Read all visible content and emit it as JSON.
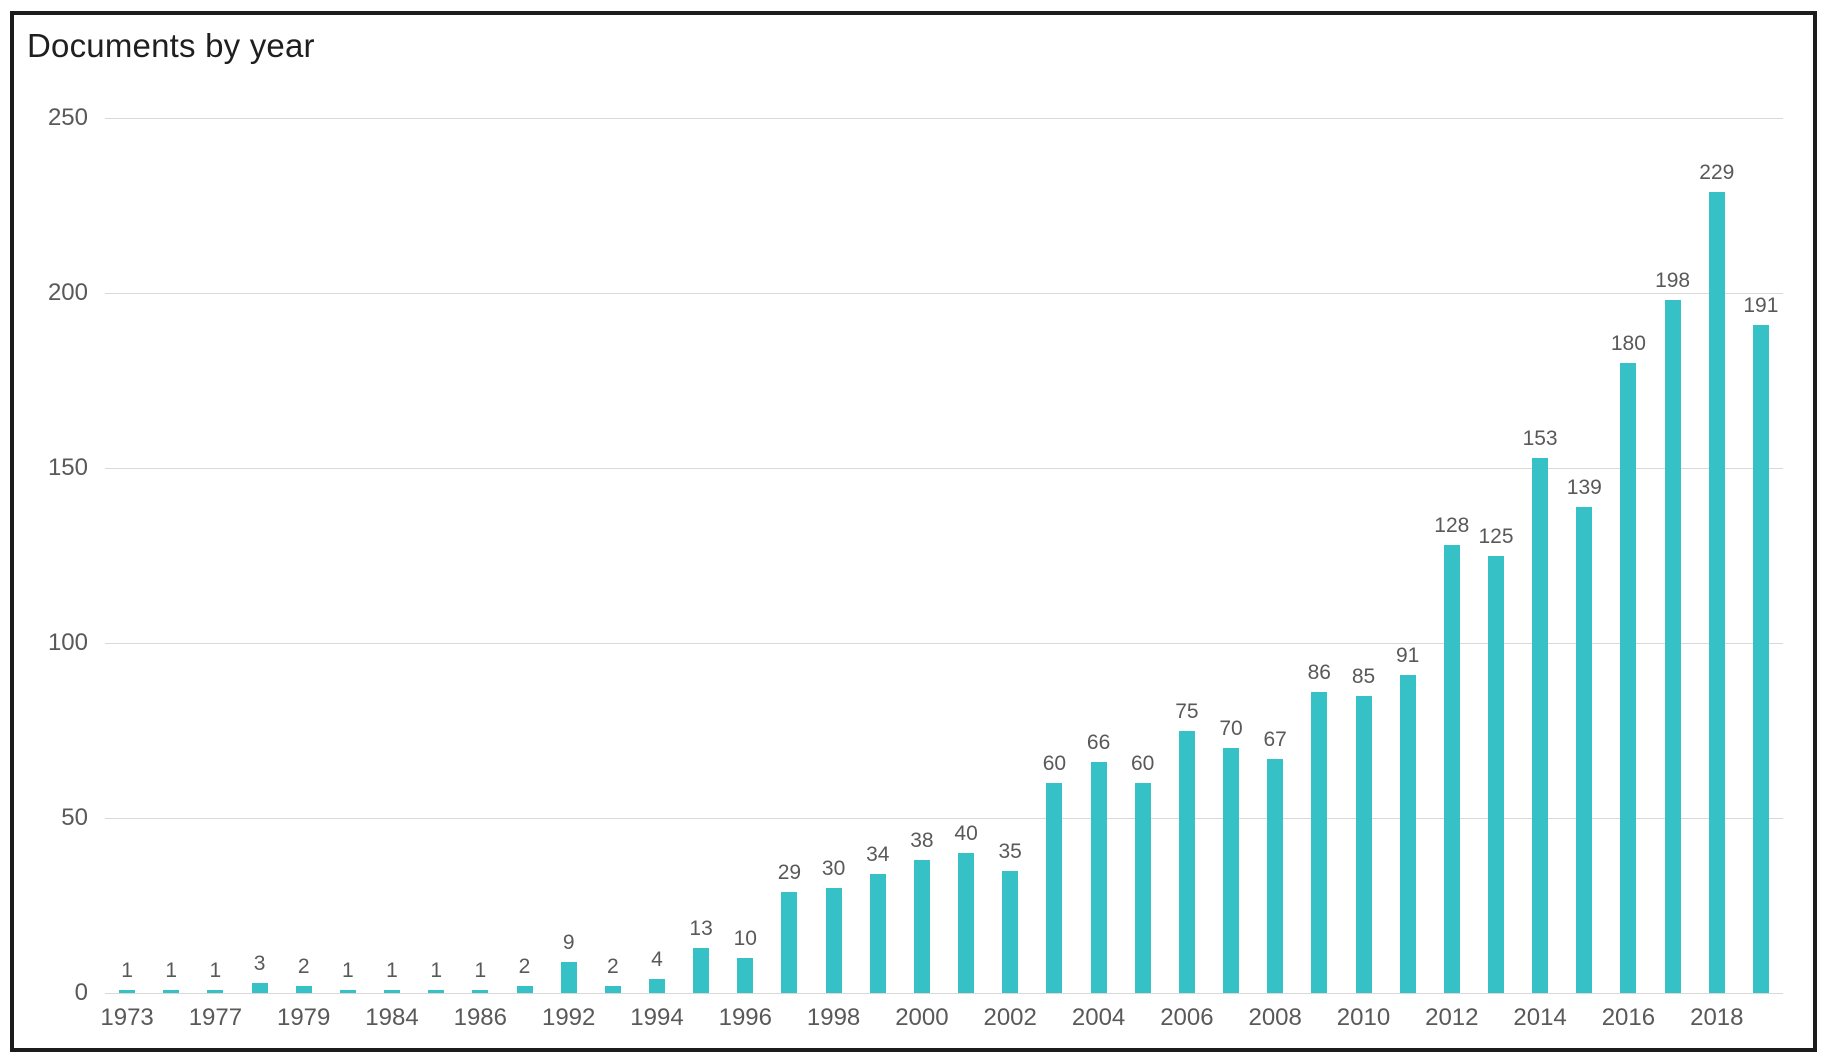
{
  "chart_data": {
    "type": "bar",
    "title": "Documents by year",
    "xlabel": "",
    "ylabel": "",
    "values": [
      1,
      1,
      1,
      3,
      2,
      1,
      1,
      1,
      1,
      2,
      9,
      2,
      4,
      13,
      10,
      29,
      30,
      34,
      38,
      40,
      35,
      60,
      66,
      60,
      75,
      70,
      67,
      86,
      85,
      91,
      128,
      125,
      153,
      139,
      180,
      198,
      229,
      191
    ],
    "data_labels": [
      "1",
      "1",
      "1",
      "3",
      "2",
      "1",
      "1",
      "1",
      "1",
      "2",
      "9",
      "2",
      "4",
      "13",
      "10",
      "29",
      "30",
      "34",
      "38",
      "40",
      "35",
      "60",
      "66",
      "60",
      "75",
      "70",
      "67",
      "86",
      "85",
      "91",
      "128",
      "125",
      "153",
      "139",
      "180",
      "198",
      "229",
      "191"
    ],
    "x_tick_labels": [
      "1973",
      "1977",
      "1979",
      "1984",
      "1986",
      "1992",
      "1994",
      "1996",
      "1998",
      "2000",
      "2002",
      "2004",
      "2006",
      "2008",
      "2010",
      "2012",
      "2014",
      "2016",
      "2018"
    ],
    "x_tick_every": 2,
    "y_ticks": [
      0,
      50,
      100,
      150,
      200,
      250
    ],
    "ylim": [
      0,
      250
    ],
    "grid": "horizontal",
    "legend": "none",
    "colors": {
      "bar": "#35c1c6",
      "grid": "#d9d9d9",
      "axis_text": "#595959",
      "title_text": "#1f1f1f",
      "frame_border": "#1c1c1c",
      "background": "#ffffff"
    }
  }
}
